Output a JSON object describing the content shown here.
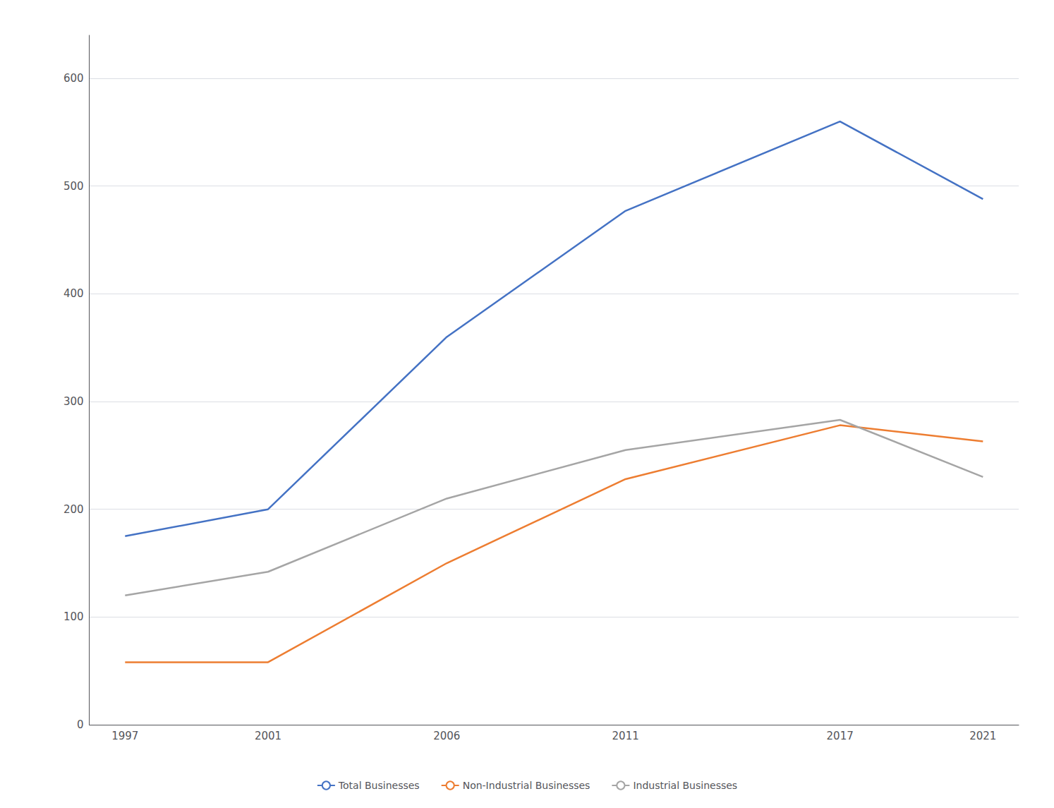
{
  "chart_data": {
    "type": "line",
    "x": [
      1997,
      2001,
      2006,
      2011,
      2017,
      2021
    ],
    "series": [
      {
        "name": "Total Businesses",
        "color": "#4472C4",
        "values": [
          175,
          200,
          360,
          477,
          560,
          488
        ]
      },
      {
        "name": "Non-Industrial Businesses",
        "color": "#ED7D31",
        "values": [
          58,
          58,
          150,
          228,
          278,
          263
        ]
      },
      {
        "name": "Industrial Businesses",
        "color": "#A5A5A5",
        "values": [
          120,
          142,
          210,
          255,
          283,
          230
        ]
      }
    ],
    "xlim": [
      1996,
      2022
    ],
    "xticks": [
      1997,
      2001,
      2006,
      2011,
      2017,
      2021
    ],
    "ylim": [
      0,
      640
    ],
    "yticks": [
      0,
      100,
      200,
      300,
      400,
      500,
      600
    ],
    "grid": true,
    "legend": "bottom"
  }
}
